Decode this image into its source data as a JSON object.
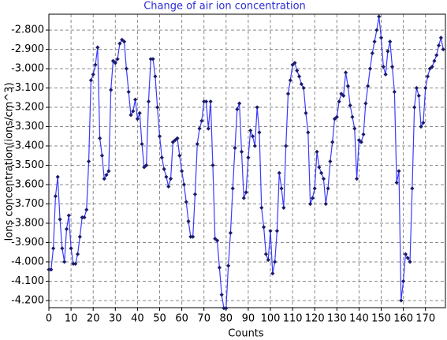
{
  "chart_data": {
    "type": "line",
    "title": "Change of air ion concentration",
    "x_label": "Counts",
    "y_label": "Ions concentration(ions/cm^3)",
    "grid": true,
    "xlim": [
      0,
      179
    ],
    "ylim": [
      -4.237,
      -2.718
    ],
    "xticks": [
      0,
      10,
      20,
      30,
      40,
      50,
      60,
      70,
      80,
      90,
      100,
      110,
      120,
      130,
      140,
      150,
      160,
      170
    ],
    "yticks": [
      {
        "value": -2.8,
        "label": "-2.800"
      },
      {
        "value": -2.9,
        "label": "-2.900"
      },
      {
        "value": -3.0,
        "label": "-3.000"
      },
      {
        "value": -3.1,
        "label": "-3.100"
      },
      {
        "value": -3.2,
        "label": "-3.200"
      },
      {
        "value": -3.3,
        "label": "-3.300"
      },
      {
        "value": -3.4,
        "label": "-3.400"
      },
      {
        "value": -3.5,
        "label": "-3.500"
      },
      {
        "value": -3.6,
        "label": "-3.600"
      },
      {
        "value": -3.7,
        "label": "-3.700"
      },
      {
        "value": -3.8,
        "label": "-3.800"
      },
      {
        "value": -3.9,
        "label": "-3.900"
      },
      {
        "value": -4.0,
        "label": "-4.000"
      },
      {
        "value": -4.1,
        "label": "-4.100"
      },
      {
        "value": -4.2,
        "label": "-4.200"
      }
    ],
    "x": [
      0,
      1,
      2,
      3,
      4,
      5,
      6,
      7,
      8,
      9,
      10,
      11,
      12,
      13,
      14,
      15,
      16,
      17,
      18,
      19,
      20,
      21,
      22,
      23,
      24,
      25,
      26,
      27,
      28,
      29,
      30,
      31,
      32,
      33,
      34,
      35,
      36,
      37,
      38,
      39,
      40,
      41,
      42,
      43,
      44,
      45,
      46,
      47,
      48,
      49,
      50,
      51,
      52,
      53,
      54,
      55,
      56,
      57,
      58,
      59,
      60,
      61,
      62,
      63,
      64,
      65,
      66,
      67,
      68,
      69,
      70,
      71,
      72,
      73,
      74,
      75,
      76,
      77,
      78,
      79,
      80,
      81,
      82,
      83,
      84,
      85,
      86,
      87,
      88,
      89,
      90,
      91,
      92,
      93,
      94,
      95,
      96,
      97,
      98,
      99,
      100,
      101,
      102,
      103,
      104,
      105,
      106,
      107,
      108,
      109,
      110,
      111,
      112,
      113,
      114,
      115,
      116,
      117,
      118,
      119,
      120,
      121,
      122,
      123,
      124,
      125,
      126,
      127,
      128,
      129,
      130,
      131,
      132,
      133,
      134,
      135,
      136,
      137,
      138,
      139,
      140,
      141,
      142,
      143,
      144,
      145,
      146,
      147,
      148,
      149,
      150,
      151,
      152,
      153,
      154,
      155,
      156,
      157,
      158,
      159,
      160,
      161,
      162,
      163,
      164,
      165,
      166,
      167,
      168,
      169,
      170,
      171,
      172,
      173,
      174,
      175,
      176,
      177,
      178
    ],
    "series": [
      {
        "color": "#3a3aff",
        "marker_color": "#1a1a6a",
        "values": [
          -4.04,
          -4.04,
          -3.93,
          -3.66,
          -3.56,
          -3.78,
          -3.93,
          -4.0,
          -3.83,
          -3.76,
          -3.93,
          -4.01,
          -4.01,
          -3.96,
          -3.87,
          -3.77,
          -3.77,
          -3.73,
          -3.48,
          -3.06,
          -3.03,
          -2.98,
          -2.89,
          -3.36,
          -3.45,
          -3.57,
          -3.55,
          -3.53,
          -3.11,
          -2.96,
          -2.97,
          -2.95,
          -2.87,
          -2.85,
          -2.86,
          -3.0,
          -3.12,
          -3.24,
          -3.22,
          -3.16,
          -3.26,
          -3.23,
          -3.39,
          -3.51,
          -3.5,
          -3.17,
          -2.95,
          -2.95,
          -3.04,
          -3.2,
          -3.35,
          -3.46,
          -3.52,
          -3.56,
          -3.61,
          -3.57,
          -3.38,
          -3.37,
          -3.36,
          -3.45,
          -3.53,
          -3.6,
          -3.69,
          -3.79,
          -3.87,
          -3.87,
          -3.65,
          -3.39,
          -3.31,
          -3.27,
          -3.17,
          -3.17,
          -3.31,
          -3.17,
          -3.5,
          -3.88,
          -3.89,
          -4.03,
          -4.17,
          -4.24,
          -4.24,
          -4.02,
          -3.85,
          -3.62,
          -3.41,
          -3.21,
          -3.18,
          -3.43,
          -3.67,
          -3.64,
          -3.46,
          -3.32,
          -3.35,
          -3.4,
          -3.2,
          -3.33,
          -3.72,
          -3.82,
          -3.96,
          -3.99,
          -3.84,
          -4.06,
          -4.0,
          -3.84,
          -3.54,
          -3.62,
          -3.72,
          -3.4,
          -3.13,
          -3.06,
          -2.98,
          -2.97,
          -3.01,
          -3.04,
          -3.08,
          -3.1,
          -3.23,
          -3.33,
          -3.7,
          -3.67,
          -3.62,
          -3.43,
          -3.51,
          -3.54,
          -3.57,
          -3.7,
          -3.62,
          -3.48,
          -3.38,
          -3.26,
          -3.25,
          -3.17,
          -3.13,
          -3.14,
          -3.02,
          -3.09,
          -3.19,
          -3.25,
          -3.31,
          -3.57,
          -3.37,
          -3.38,
          -3.34,
          -3.18,
          -3.09,
          -3.0,
          -2.92,
          -2.86,
          -2.8,
          -2.73,
          -2.84,
          -2.99,
          -3.03,
          -2.91,
          -2.86,
          -2.99,
          -3.12,
          -3.59,
          -3.53,
          -4.2,
          -4.1,
          -3.96,
          -3.98,
          -4.0,
          -3.62,
          -3.2,
          -3.1,
          -3.14,
          -3.3,
          -3.28,
          -3.1,
          -3.04,
          -3.0,
          -2.99,
          -2.96,
          -2.93,
          -2.88,
          -2.84,
          -2.9
        ]
      }
    ]
  }
}
